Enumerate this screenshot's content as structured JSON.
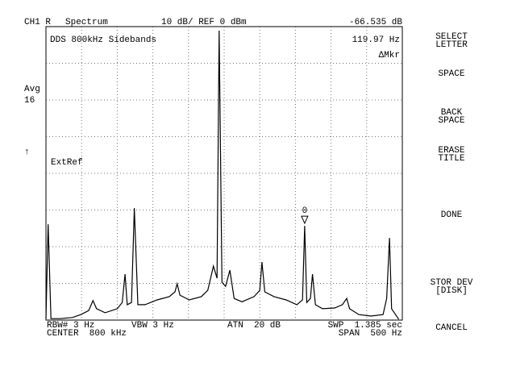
{
  "header": {
    "channel": "CH1 R",
    "mode": "Spectrum",
    "scale": "10 dB/ REF 0 dBm",
    "readout": "-66.535 dB"
  },
  "left": {
    "avg": "Avg",
    "avg_count": "16",
    "arrow": "↑"
  },
  "overlay": {
    "title": "DDS 800kHz Sidebands",
    "marker_readout": "119.97 Hz",
    "marker_mode": "ΔMkr",
    "ref": "ExtRef",
    "marker_label": "0"
  },
  "footer": {
    "rbw": "RBW# 3 Hz",
    "vbw": "VBW 3 Hz",
    "atn": "ATN  20 dB",
    "swp": "SWP  1.385 sec",
    "center": "CENTER  800 kHz",
    "span": "SPAN  500 Hz"
  },
  "softkeys": [
    [
      "SELECT",
      "LETTER"
    ],
    [
      "SPACE"
    ],
    [
      "BACK",
      "SPACE"
    ],
    [
      "ERASE",
      "TITLE"
    ],
    [
      "DONE"
    ],
    [
      "STOR DEV",
      "[DISK]"
    ],
    [
      "CANCEL"
    ]
  ],
  "chart_data": {
    "type": "line",
    "x": [
      799750,
      799753,
      799757,
      799770,
      799787,
      799799,
      799810,
      799816,
      799821,
      799833,
      799850,
      799857,
      799861,
      799864,
      799870,
      799874,
      799879,
      799889,
      799906,
      799923,
      799931,
      799934,
      799938,
      799951,
      799968,
      799977,
      799985,
      799990,
      799993,
      799997,
      800002,
      800008,
      800014,
      800025,
      800042,
      800050,
      800053,
      800057,
      800070,
      800087,
      800102,
      800110,
      800113,
      800116,
      800121,
      800124,
      800128,
      800138,
      800155,
      800166,
      800172,
      800176,
      800189,
      800206,
      800223,
      800228,
      800232,
      800235,
      800245
    ],
    "series": [
      {
        "color": "#000000",
        "values": [
          -79.6,
          -53.9,
          -79.6,
          -79.6,
          -79.3,
          -78.5,
          -77.4,
          -74.7,
          -76.9,
          -78.0,
          -76.9,
          -75.2,
          -67.5,
          -75.8,
          -75.2,
          -49.5,
          -75.8,
          -75.8,
          -74.5,
          -73.6,
          -72.3,
          -70.1,
          -73.2,
          -74.5,
          -73.6,
          -71.9,
          -65.3,
          -68.6,
          -1.1,
          -69.7,
          -70.8,
          -66.4,
          -74.1,
          -75.0,
          -73.6,
          -71.9,
          -64.2,
          -72.3,
          -73.6,
          -74.5,
          -75.8,
          -74.5,
          -54.3,
          -75.2,
          -74.1,
          -67.5,
          -75.8,
          -76.9,
          -76.7,
          -75.8,
          -74.1,
          -76.9,
          -78.5,
          -78.9,
          -78.5,
          -74.1,
          -57.6,
          -76.9,
          -79.8
        ]
      }
    ],
    "xlim": [
      799750,
      800250
    ],
    "xticks": [
      799750,
      799800,
      799850,
      799900,
      799950,
      800000,
      800050,
      800100,
      800150,
      800200,
      800250
    ],
    "ylim": [
      -80,
      0
    ],
    "yticks": [
      -80,
      -70,
      -60,
      -50,
      -40,
      -30,
      -20,
      -10,
      0
    ],
    "grid": true
  }
}
